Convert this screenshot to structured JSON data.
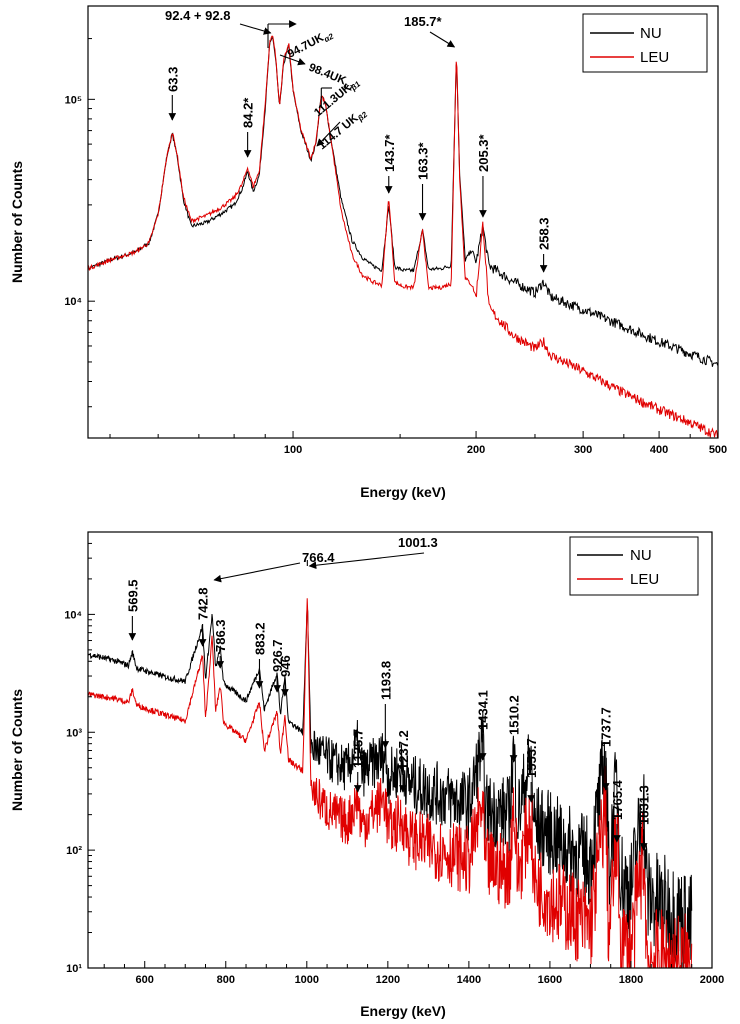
{
  "chart_data": [
    {
      "type": "line",
      "xlabel": "Energy (keV)",
      "ylabel": "Number of Counts",
      "xscale": "log",
      "yscale": "log",
      "xlim": [
        46,
        500
      ],
      "ylim": [
        2100,
        290000
      ],
      "x_ticks": [
        "100",
        "200",
        "300",
        "400",
        "500"
      ],
      "y_ticks": [
        "10⁴",
        "10⁵"
      ],
      "legend_position": "top-right",
      "series": [
        {
          "name": "NU",
          "color": "#000000",
          "points": [
            [
              46,
              14500
            ],
            [
              50,
              16000
            ],
            [
              55,
              17500
            ],
            [
              58,
              19500
            ],
            [
              60,
              27000
            ],
            [
              62,
              52000
            ],
            [
              63.3,
              68000
            ],
            [
              64.5,
              52000
            ],
            [
              66,
              32000
            ],
            [
              68,
              23500
            ],
            [
              72,
              24500
            ],
            [
              76,
              27000
            ],
            [
              80,
              30000
            ],
            [
              82.5,
              36000
            ],
            [
              84.2,
              44000
            ],
            [
              86,
              35000
            ],
            [
              88,
              42000
            ],
            [
              90,
              90000
            ],
            [
              91.5,
              185000
            ],
            [
              92.6,
              205000
            ],
            [
              93.8,
              150000
            ],
            [
              95,
              90000
            ],
            [
              96.5,
              150000
            ],
            [
              98.4,
              185000
            ],
            [
              100,
              110000
            ],
            [
              103,
              70000
            ],
            [
              107,
              50000
            ],
            [
              109,
              60000
            ],
            [
              111.3,
              105000
            ],
            [
              113,
              95000
            ],
            [
              114.7,
              72000
            ],
            [
              117,
              50000
            ],
            [
              120,
              32000
            ],
            [
              125,
              20000
            ],
            [
              130,
              16500
            ],
            [
              135,
              15000
            ],
            [
              140,
              14300
            ],
            [
              143.7,
              30000
            ],
            [
              147,
              14800
            ],
            [
              152,
              14200
            ],
            [
              158,
              14200
            ],
            [
              163.3,
              22500
            ],
            [
              167,
              14400
            ],
            [
              175,
              14500
            ],
            [
              182,
              15000
            ],
            [
              185.7,
              170000
            ],
            [
              188,
              42000
            ],
            [
              192,
              16000
            ],
            [
              197,
              18000
            ],
            [
              200,
              15500
            ],
            [
              205.3,
              23500
            ],
            [
              210,
              15000
            ],
            [
              230,
              12500
            ],
            [
              250,
              11000
            ],
            [
              258.3,
              12500
            ],
            [
              265,
              10500
            ],
            [
              300,
              9100
            ],
            [
              350,
              7500
            ],
            [
              400,
              6300
            ],
            [
              450,
              5500
            ],
            [
              500,
              4850
            ]
          ]
        },
        {
          "name": "LEU",
          "color": "#e00000",
          "points": [
            [
              46,
              14500
            ],
            [
              50,
              16000
            ],
            [
              55,
              17500
            ],
            [
              58,
              19500
            ],
            [
              60,
              27000
            ],
            [
              62,
              52000
            ],
            [
              63.3,
              69000
            ],
            [
              64.5,
              53000
            ],
            [
              66,
              33000
            ],
            [
              68,
              25000
            ],
            [
              72,
              26500
            ],
            [
              76,
              29000
            ],
            [
              80,
              32500
            ],
            [
              82.5,
              38000
            ],
            [
              84.2,
              46000
            ],
            [
              86,
              37000
            ],
            [
              88,
              44000
            ],
            [
              90,
              95000
            ],
            [
              91.5,
              190000
            ],
            [
              92.6,
              210000
            ],
            [
              93.8,
              155000
            ],
            [
              95,
              92000
            ],
            [
              96.5,
              155000
            ],
            [
              98.4,
              190000
            ],
            [
              100,
              112000
            ],
            [
              103,
              71000
            ],
            [
              107,
              51000
            ],
            [
              109,
              61000
            ],
            [
              111.3,
              105000
            ],
            [
              113,
              95000
            ],
            [
              114.7,
              72000
            ],
            [
              117,
              48000
            ],
            [
              120,
              28000
            ],
            [
              125,
              17000
            ],
            [
              130,
              13500
            ],
            [
              135,
              12500
            ],
            [
              140,
              12000
            ],
            [
              143.7,
              33000
            ],
            [
              147,
              12400
            ],
            [
              152,
              11800
            ],
            [
              158,
              11700
            ],
            [
              163.3,
              23000
            ],
            [
              167,
              11600
            ],
            [
              175,
              11700
            ],
            [
              182,
              12200
            ],
            [
              185.7,
              178000
            ],
            [
              188,
              40000
            ],
            [
              192,
              13000
            ],
            [
              197,
              12000
            ],
            [
              200,
              10500
            ],
            [
              205.3,
              24500
            ],
            [
              210,
              9200
            ],
            [
              230,
              6800
            ],
            [
              250,
              5800
            ],
            [
              258.3,
              6300
            ],
            [
              265,
              5400
            ],
            [
              300,
              4500
            ],
            [
              350,
              3500
            ],
            [
              400,
              2900
            ],
            [
              450,
              2500
            ],
            [
              500,
              2150
            ]
          ]
        }
      ],
      "annotations": [
        {
          "text": "63.3",
          "x": 63.3
        },
        {
          "text": "84.2*",
          "x": 84.2
        },
        {
          "text": "92.4 + 92.8",
          "x": 92.6
        },
        {
          "text": "94.7UK",
          "sub": "α2",
          "x": 94.7
        },
        {
          "text": "98.4UK",
          "sub": "α1",
          "x": 98.4
        },
        {
          "text": "111.3UK",
          "sub": "β1",
          "x": 111.3
        },
        {
          "text": "114.7 UK",
          "sub": "β2",
          "x": 114.7
        },
        {
          "text": "143.7*",
          "x": 143.7
        },
        {
          "text": "163.3*",
          "x": 163.3
        },
        {
          "text": "185.7*",
          "x": 185.7
        },
        {
          "text": "205.3*",
          "x": 205.3
        },
        {
          "text": "258.3",
          "x": 258.3
        }
      ]
    },
    {
      "type": "line",
      "xlabel": "Energy (keV)",
      "ylabel": "Number of Counts",
      "xscale": "linear",
      "yscale": "log",
      "xlim": [
        460,
        2000
      ],
      "ylim": [
        10,
        50000
      ],
      "x_ticks": [
        "600",
        "800",
        "1000",
        "1200",
        "1400",
        "1600",
        "1800",
        "2000"
      ],
      "y_ticks": [
        "10¹",
        "10²",
        "10³",
        "10⁴"
      ],
      "legend_position": "top-right",
      "series": [
        {
          "name": "NU",
          "color": "#000000",
          "points": [
            [
              460,
              4600
            ],
            [
              520,
              4100
            ],
            [
              560,
              3700
            ],
            [
              569.5,
              4800
            ],
            [
              580,
              3500
            ],
            [
              650,
              2950
            ],
            [
              700,
              2700
            ],
            [
              742.8,
              8000
            ],
            [
              750,
              2800
            ],
            [
              766.4,
              10000
            ],
            [
              775,
              3500
            ],
            [
              786.3,
              5200
            ],
            [
              795,
              2600
            ],
            [
              850,
              1850
            ],
            [
              883.2,
              3500
            ],
            [
              895,
              1550
            ],
            [
              926.7,
              3200
            ],
            [
              935,
              1400
            ],
            [
              946,
              3000
            ],
            [
              955,
              1250
            ],
            [
              990,
              1000
            ],
            [
              1001.3,
              13000
            ],
            [
              1010,
              800
            ],
            [
              1050,
              600
            ],
            [
              1100,
              480
            ],
            [
              1125.7,
              800
            ],
            [
              1135,
              450
            ],
            [
              1193.8,
              650
            ],
            [
              1200,
              420
            ],
            [
              1237.2,
              500
            ],
            [
              1250,
              370
            ],
            [
              1300,
              320
            ],
            [
              1350,
              280
            ],
            [
              1400,
              240
            ],
            [
              1434.1,
              800
            ],
            [
              1440,
              220
            ],
            [
              1500,
              200
            ],
            [
              1510.2,
              700
            ],
            [
              1520,
              190
            ],
            [
              1553.7,
              600
            ],
            [
              1560,
              170
            ],
            [
              1600,
              140
            ],
            [
              1650,
              100
            ],
            [
              1700,
              80
            ],
            [
              1737.7,
              600
            ],
            [
              1745,
              70
            ],
            [
              1765.4,
              400
            ],
            [
              1775,
              60
            ],
            [
              1800,
              45
            ],
            [
              1831.3,
              250
            ],
            [
              1840,
              40
            ],
            [
              1900,
              30
            ],
            [
              1950,
              22
            ]
          ]
        },
        {
          "name": "LEU",
          "color": "#e00000",
          "points": [
            [
              460,
              2100
            ],
            [
              520,
              1950
            ],
            [
              560,
              1800
            ],
            [
              569.5,
              2300
            ],
            [
              580,
              1700
            ],
            [
              650,
              1400
            ],
            [
              700,
              1250
            ],
            [
              742.8,
              4500
            ],
            [
              750,
              1300
            ],
            [
              766.4,
              6500
            ],
            [
              775,
              1500
            ],
            [
              786.3,
              2500
            ],
            [
              795,
              1200
            ],
            [
              850,
              850
            ],
            [
              883.2,
              1800
            ],
            [
              895,
              700
            ],
            [
              926.7,
              1500
            ],
            [
              935,
              650
            ],
            [
              946,
              1400
            ],
            [
              955,
              580
            ],
            [
              990,
              470
            ],
            [
              1001.3,
              14500
            ],
            [
              1010,
              340
            ],
            [
              1050,
              220
            ],
            [
              1100,
              170
            ],
            [
              1125.7,
              280
            ],
            [
              1135,
              160
            ],
            [
              1193.8,
              280
            ],
            [
              1200,
              150
            ],
            [
              1237.2,
              180
            ],
            [
              1250,
              130
            ],
            [
              1300,
              110
            ],
            [
              1350,
              95
            ],
            [
              1400,
              80
            ],
            [
              1434.1,
              250
            ],
            [
              1440,
              75
            ],
            [
              1500,
              65
            ],
            [
              1510.2,
              260
            ],
            [
              1520,
              60
            ],
            [
              1553.7,
              200
            ],
            [
              1560,
              55
            ],
            [
              1600,
              40
            ],
            [
              1650,
              30
            ],
            [
              1700,
              22
            ],
            [
              1737.7,
              250
            ],
            [
              1745,
              18
            ],
            [
              1765.4,
              130
            ],
            [
              1775,
              16
            ],
            [
              1800,
              14
            ],
            [
              1831.3,
              100
            ],
            [
              1840,
              12
            ],
            [
              1900,
              11
            ],
            [
              1950,
              10
            ]
          ]
        }
      ],
      "annotations": [
        {
          "text": "569.5",
          "x": 569.5
        },
        {
          "text": "742.8",
          "x": 742.8
        },
        {
          "text": "766.4",
          "x": 766.4
        },
        {
          "text": "786.3",
          "x": 786.3
        },
        {
          "text": "883.2",
          "x": 883.2
        },
        {
          "text": "926.7",
          "x": 926.7
        },
        {
          "text": "946",
          "x": 946
        },
        {
          "text": "1001.3",
          "x": 1001.3
        },
        {
          "text": "1125.7",
          "x": 1125.7
        },
        {
          "text": "1193.8",
          "x": 1193.8
        },
        {
          "text": "1237.2",
          "x": 1237.2
        },
        {
          "text": "1434.1",
          "x": 1434.1
        },
        {
          "text": "1510.2",
          "x": 1510.2
        },
        {
          "text": "1553.7",
          "x": 1553.7
        },
        {
          "text": "1737.7",
          "x": 1737.7
        },
        {
          "text": "1765.4",
          "x": 1765.4
        },
        {
          "text": "1831.3",
          "x": 1831.3
        }
      ]
    }
  ]
}
